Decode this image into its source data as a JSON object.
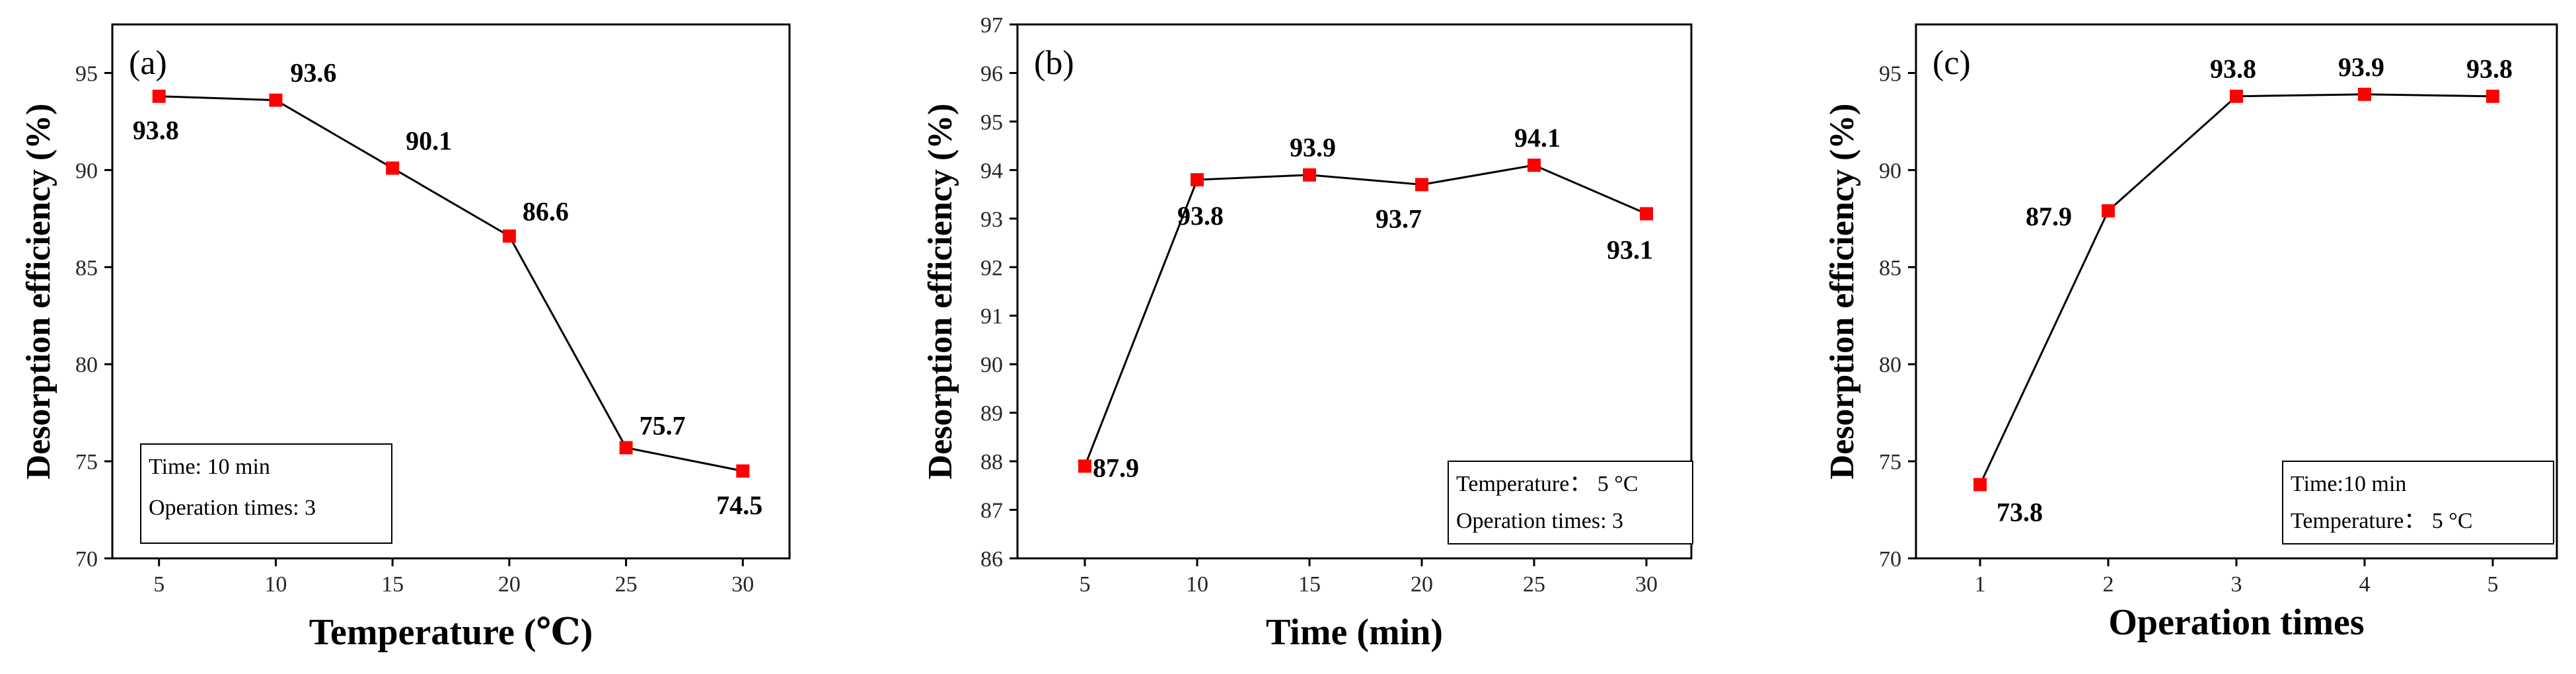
{
  "chart_data": [
    {
      "type": "line",
      "panel_label": "(a)",
      "xlabel": "Temperature (℃)",
      "ylabel": "Desorption efficiency (%)",
      "x": [
        5,
        10,
        15,
        20,
        25,
        30
      ],
      "values": [
        93.8,
        93.6,
        90.1,
        86.6,
        75.7,
        74.5
      ],
      "data_labels": [
        "93.8",
        "93.6",
        "90.1",
        "86.6",
        "75.7",
        "74.5"
      ],
      "x_ticks": [
        "5",
        "10",
        "15",
        "20",
        "25",
        "30"
      ],
      "y_ticks": [
        "70",
        "75",
        "80",
        "85",
        "90",
        "95"
      ],
      "xlim": [
        3,
        32
      ],
      "ylim": [
        70,
        97.5
      ],
      "legend_lines": [
        "Time: 10 min",
        "Operation times: 3"
      ],
      "legend_position": "bottom-left",
      "line_color": "#000000",
      "marker_color": "#ff0000"
    },
    {
      "type": "line",
      "panel_label": "(b)",
      "xlabel": "Time (min)",
      "ylabel": "Desorption efficiency (%)",
      "x": [
        5,
        10,
        15,
        20,
        25,
        30
      ],
      "values": [
        87.9,
        93.8,
        93.9,
        93.7,
        94.1,
        93.1
      ],
      "data_labels": [
        "87.9",
        "93.8",
        "93.9",
        "93.7",
        "94.1",
        "93.1"
      ],
      "x_ticks": [
        "5",
        "10",
        "15",
        "20",
        "25",
        "30"
      ],
      "y_ticks": [
        "86",
        "87",
        "88",
        "89",
        "90",
        "91",
        "92",
        "93",
        "94",
        "95",
        "96",
        "97"
      ],
      "xlim": [
        2,
        32
      ],
      "ylim": [
        86,
        97
      ],
      "legend_lines": [
        "Temperature： 5 °C",
        "Operation times: 3"
      ],
      "legend_position": "bottom-right",
      "line_color": "#000000",
      "marker_color": "#ff0000"
    },
    {
      "type": "line",
      "panel_label": "(c)",
      "xlabel": "Operation times",
      "ylabel": "Desorption efficiency (%)",
      "x": [
        1,
        2,
        3,
        4,
        5
      ],
      "values": [
        73.8,
        87.9,
        93.8,
        93.9,
        93.8
      ],
      "data_labels": [
        "73.8",
        "87.9",
        "93.8",
        "93.9",
        "93.8"
      ],
      "x_ticks": [
        "1",
        "2",
        "3",
        "4",
        "5"
      ],
      "y_ticks": [
        "70",
        "75",
        "80",
        "85",
        "90",
        "95"
      ],
      "xlim": [
        0.5,
        5.5
      ],
      "ylim": [
        70,
        97.5
      ],
      "legend_lines": [
        "Time:10 min",
        "Temperature： 5 °C"
      ],
      "legend_position": "bottom-right",
      "line_color": "#000000",
      "marker_color": "#ff0000"
    }
  ]
}
